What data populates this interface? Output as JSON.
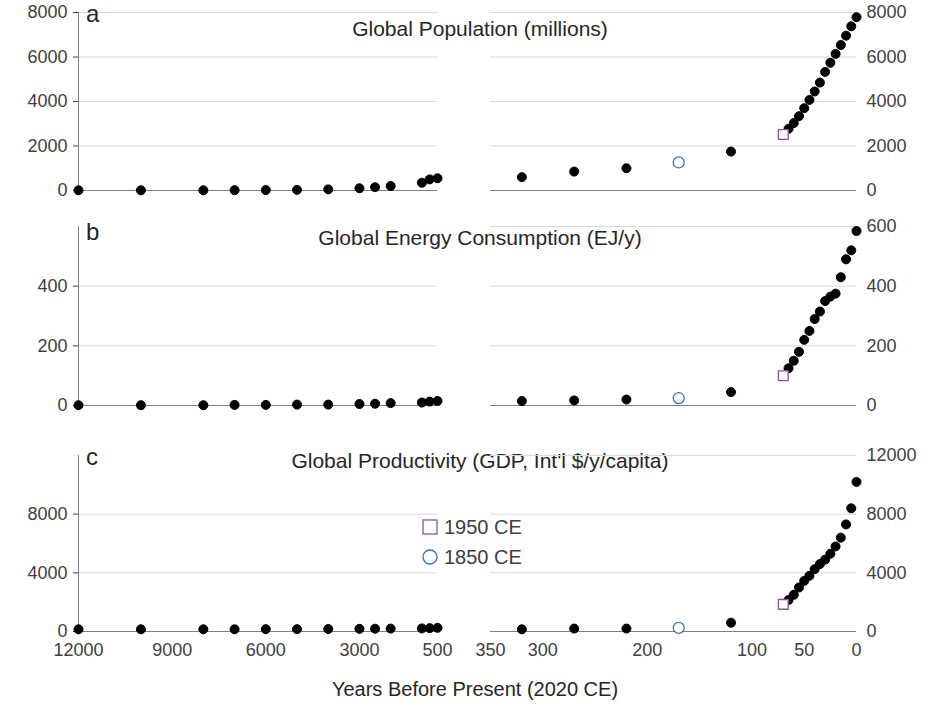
{
  "chart_data": [
    {
      "type": "scatter",
      "title": "Global Population (millions)",
      "annotations": [
        "a"
      ],
      "xlim": [
        12000,
        500
      ],
      "ylim": [
        0,
        8000
      ],
      "yticks": [
        0,
        2000,
        4000,
        6000,
        8000
      ],
      "grid": true,
      "tick_labels": "y",
      "series": [
        {
          "color": "#000000",
          "marker": "circle",
          "x": [
            12000,
            10000,
            8000,
            7000,
            6000,
            5000,
            4000,
            3000,
            2500,
            2000,
            1000,
            750,
            500
          ],
          "values": [
            10,
            10,
            10,
            15,
            20,
            30,
            50,
            100,
            150,
            200,
            350,
            500,
            550
          ]
        }
      ]
    },
    {
      "type": "scatter",
      "xlim": [
        350,
        0
      ],
      "ylim": [
        0,
        8000
      ],
      "yticks": [
        0,
        2000,
        4000,
        6000,
        8000
      ],
      "grid": true,
      "tick_labels": "y",
      "series": [
        {
          "color": "#000000",
          "marker": "circle",
          "x": [
            320,
            270,
            220,
            120,
            65,
            60,
            55,
            50,
            45,
            40,
            35,
            30,
            25,
            20,
            15,
            10,
            5,
            0
          ],
          "values": [
            600,
            850,
            1000,
            1750,
            2770,
            3030,
            3340,
            3700,
            4070,
            4450,
            4850,
            5330,
            5740,
            6140,
            6540,
            6960,
            7380,
            7790
          ]
        },
        {
          "name": "1950 CE",
          "color": "#8e4fa3",
          "marker": "open square",
          "x": [
            70
          ],
          "values": [
            2520
          ]
        },
        {
          "name": "1850 CE",
          "color": "#2e75b6",
          "marker": "open circle",
          "x": [
            170
          ],
          "values": [
            1260
          ]
        }
      ]
    },
    {
      "type": "scatter",
      "title": "Global Energy Consumption (EJ/y)",
      "annotations": [
        "b"
      ],
      "xlim": [
        12000,
        500
      ],
      "ylim": [
        0,
        600
      ],
      "yticks": [
        0,
        200,
        400
      ],
      "grid": true,
      "tick_labels": "y",
      "series": [
        {
          "color": "#000000",
          "marker": "circle",
          "x": [
            12000,
            10000,
            8000,
            7000,
            6000,
            5000,
            4000,
            3000,
            2500,
            2000,
            1000,
            750,
            500
          ],
          "values": [
            1,
            1,
            1,
            2,
            2,
            3,
            3,
            5,
            6,
            8,
            10,
            13,
            15
          ]
        }
      ]
    },
    {
      "type": "scatter",
      "xlim": [
        350,
        0
      ],
      "ylim": [
        0,
        600
      ],
      "yticks": [
        0,
        200,
        400,
        600
      ],
      "grid": true,
      "tick_labels": "y",
      "series": [
        {
          "color": "#000000",
          "marker": "circle",
          "x": [
            320,
            270,
            220,
            120,
            65,
            60,
            55,
            50,
            45,
            40,
            35,
            30,
            25,
            20,
            15,
            10,
            5,
            0
          ],
          "values": [
            15,
            17,
            20,
            45,
            125,
            150,
            180,
            220,
            250,
            290,
            315,
            350,
            365,
            375,
            430,
            490,
            520,
            585
          ]
        },
        {
          "name": "1950 CE",
          "color": "#8e4fa3",
          "marker": "open square",
          "x": [
            70
          ],
          "values": [
            100
          ]
        },
        {
          "name": "1850 CE",
          "color": "#2e75b6",
          "marker": "open circle",
          "x": [
            170
          ],
          "values": [
            25
          ]
        }
      ]
    },
    {
      "type": "scatter",
      "title": "Global Productivity (GDP, Int'l $/y/capita)",
      "annotations": [
        "c"
      ],
      "xlabel": "Years Before Present (2020 CE)",
      "xlim": [
        12000,
        500
      ],
      "xticks": [
        12000,
        9000,
        6000,
        3000,
        500
      ],
      "ylim": [
        0,
        12000
      ],
      "yticks": [
        0,
        4000,
        8000
      ],
      "grid": true,
      "series": [
        {
          "color": "#000000",
          "marker": "circle",
          "x": [
            12000,
            10000,
            8000,
            7000,
            6000,
            5000,
            4000,
            3000,
            2500,
            2000,
            1000,
            750,
            500
          ],
          "values": [
            150,
            150,
            150,
            150,
            160,
            160,
            170,
            180,
            190,
            200,
            210,
            230,
            250
          ]
        }
      ]
    },
    {
      "type": "scatter",
      "legend": "left",
      "xlim": [
        350,
        0
      ],
      "xticks": [
        350,
        300,
        200,
        100,
        50,
        0
      ],
      "ylim": [
        0,
        12000
      ],
      "yticks": [
        0,
        4000,
        8000,
        12000
      ],
      "grid": true,
      "series": [
        {
          "color": "#000000",
          "marker": "circle",
          "x": [
            320,
            270,
            220,
            120,
            65,
            60,
            55,
            50,
            45,
            40,
            35,
            30,
            25,
            20,
            15,
            10,
            5,
            0
          ],
          "values": [
            150,
            200,
            200,
            600,
            2150,
            2500,
            3000,
            3450,
            3800,
            4250,
            4600,
            4900,
            5300,
            5800,
            6400,
            7300,
            8400,
            10200
          ]
        },
        {
          "name": "1950 CE",
          "color": "#8e4fa3",
          "marker": "open square",
          "x": [
            70
          ],
          "values": [
            1850
          ]
        },
        {
          "name": "1850 CE",
          "color": "#2e75b6",
          "marker": "open circle",
          "x": [
            170
          ],
          "values": [
            250
          ]
        }
      ]
    }
  ]
}
